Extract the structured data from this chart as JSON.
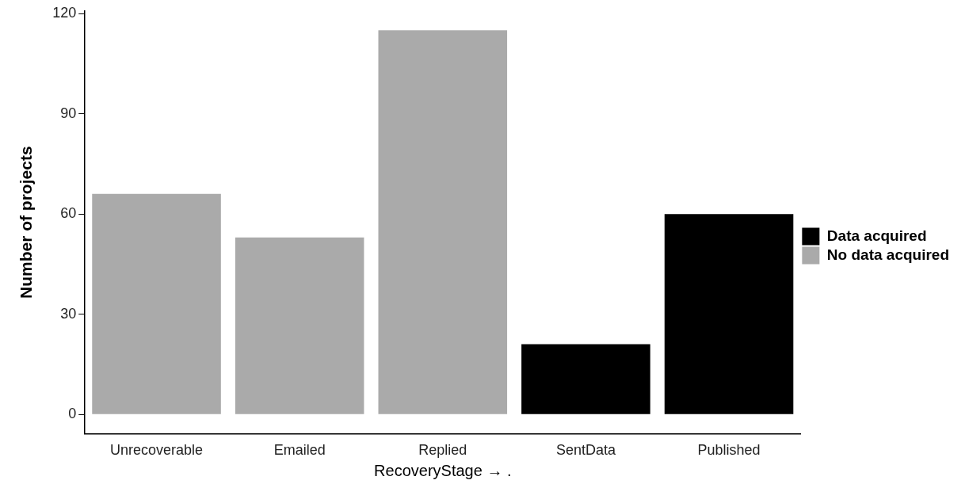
{
  "chart_data": {
    "type": "bar",
    "xlabel": "RecoveryStage → .",
    "ylabel": "Number of projects",
    "categories": [
      "Unrecoverable",
      "Emailed",
      "Replied",
      "SentData",
      "Published"
    ],
    "series": [
      {
        "name": "Data acquired",
        "color": "#000000",
        "values": [
          null,
          null,
          null,
          21,
          60
        ]
      },
      {
        "name": "No data acquired",
        "color": "#aaaaaa",
        "values": [
          66,
          53,
          115,
          null,
          null
        ]
      }
    ],
    "stacked": true,
    "ylim": [
      -5.75,
      120.75
    ],
    "yticks": [
      0,
      30,
      60,
      90,
      120
    ],
    "grid": false,
    "legend": "right"
  }
}
